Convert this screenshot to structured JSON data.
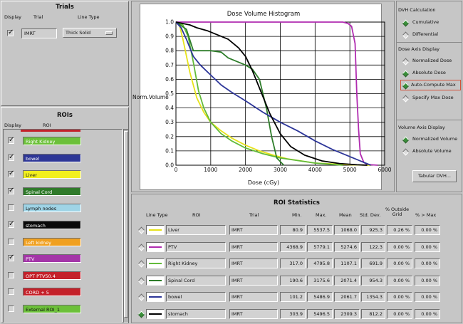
{
  "trials": {
    "title": "Trials",
    "headers": {
      "display": "Display",
      "trial": "Trial",
      "line_type": "Line Type"
    },
    "row": {
      "checked": true,
      "name": "IMRT",
      "line_type": "Thick Solid"
    }
  },
  "rois": {
    "title": "ROIs",
    "headers": {
      "display": "Display",
      "roi": "ROI"
    },
    "items": [
      {
        "name": "Right Kidney",
        "checked": true,
        "color": "#6cc03a",
        "text_color": "#ffffff"
      },
      {
        "name": "bowel",
        "checked": true,
        "color": "#2d3696",
        "text_color": "#ffffff"
      },
      {
        "name": "Liver",
        "checked": true,
        "color": "#f2ef1e",
        "text_color": "#111111"
      },
      {
        "name": "Spinal Cord",
        "checked": true,
        "color": "#2f7a2a",
        "text_color": "#ffffff"
      },
      {
        "name": "Lymph nodes",
        "checked": false,
        "color": "#9fd4e6",
        "text_color": "#111111"
      },
      {
        "name": "stomach",
        "checked": true,
        "color": "#0a0a0a",
        "text_color": "#ffffff"
      },
      {
        "name": "Left kidney",
        "checked": false,
        "color": "#f0a020",
        "text_color": "#ffffff"
      },
      {
        "name": "PTV",
        "checked": true,
        "color": "#a436a8",
        "text_color": "#ffffff"
      },
      {
        "name": "OPT PTV50.4",
        "checked": false,
        "color": "#c4212a",
        "text_color": "#ffffff"
      },
      {
        "name": "CORD + 5",
        "checked": false,
        "color": "#c4212a",
        "text_color": "#ffffff"
      },
      {
        "name": "External ROI_1",
        "checked": false,
        "color": "#6cc03a",
        "text_color": "#111111"
      }
    ]
  },
  "chart_data": {
    "type": "line",
    "title": "Dose Volume Histogram",
    "xlabel": "Dose (cGy)",
    "ylabel": "Norm.Volume",
    "xlim": [
      0,
      6000
    ],
    "ylim": [
      0,
      1.0
    ],
    "xticks": [
      0,
      1000,
      2000,
      3000,
      4000,
      5000,
      6000
    ],
    "yticks": [
      0.0,
      0.1,
      0.2,
      0.3,
      0.4,
      0.5,
      0.6,
      0.7,
      0.8,
      0.9,
      1.0
    ],
    "grid": true,
    "series": [
      {
        "name": "PTV",
        "color": "#b02cb0",
        "x": [
          0,
          4800,
          4950,
          5050,
          5150,
          5200,
          5250,
          5300,
          5400,
          5500,
          5800
        ],
        "y": [
          1.0,
          1.0,
          0.99,
          0.97,
          0.85,
          0.5,
          0.25,
          0.08,
          0.02,
          0.005,
          0.0
        ]
      },
      {
        "name": "Liver",
        "color": "#e6e21a",
        "x": [
          0,
          100,
          200,
          400,
          600,
          800,
          1000,
          1300,
          1600,
          2000,
          2400,
          2800,
          3200,
          4000,
          5000,
          5600
        ],
        "y": [
          1.0,
          0.98,
          0.88,
          0.65,
          0.47,
          0.37,
          0.3,
          0.24,
          0.19,
          0.14,
          0.1,
          0.07,
          0.045,
          0.015,
          0.003,
          0.0
        ]
      },
      {
        "name": "Right Kidney",
        "color": "#62bb3a",
        "x": [
          0,
          200,
          350,
          500,
          650,
          800,
          1000,
          1300,
          1600,
          2000,
          2500,
          3000,
          4000,
          4800
        ],
        "y": [
          1.0,
          0.98,
          0.9,
          0.72,
          0.52,
          0.4,
          0.3,
          0.22,
          0.17,
          0.12,
          0.08,
          0.05,
          0.015,
          0.0
        ]
      },
      {
        "name": "Spinal Cord",
        "color": "#2e7d2a",
        "x": [
          0,
          300,
          500,
          700,
          1000,
          1300,
          1500,
          1800,
          2000,
          2200,
          2400,
          2600,
          2750,
          2900,
          3100
        ],
        "y": [
          1.0,
          0.95,
          0.8,
          0.8,
          0.8,
          0.79,
          0.75,
          0.72,
          0.7,
          0.67,
          0.6,
          0.4,
          0.2,
          0.05,
          0.0
        ]
      },
      {
        "name": "bowel",
        "color": "#2c3598",
        "x": [
          0,
          150,
          300,
          500,
          700,
          1000,
          1300,
          1600,
          2000,
          2500,
          3000,
          3500,
          4000,
          4500,
          5000,
          5400,
          5600
        ],
        "y": [
          1.0,
          0.96,
          0.88,
          0.76,
          0.7,
          0.63,
          0.56,
          0.51,
          0.45,
          0.37,
          0.3,
          0.24,
          0.17,
          0.11,
          0.06,
          0.02,
          0.0
        ]
      },
      {
        "name": "stomach",
        "color": "#000000",
        "x": [
          0,
          400,
          600,
          900,
          1200,
          1500,
          1800,
          2000,
          2200,
          2400,
          2700,
          3000,
          3300,
          3700,
          4200,
          4700,
          5200,
          5500
        ],
        "y": [
          1.0,
          0.98,
          0.96,
          0.94,
          0.91,
          0.88,
          0.82,
          0.76,
          0.66,
          0.54,
          0.36,
          0.22,
          0.13,
          0.07,
          0.03,
          0.012,
          0.003,
          0.0
        ]
      }
    ]
  },
  "dvh_calc": {
    "title": "DVH Calculation",
    "options": [
      {
        "label": "Cumulative",
        "selected": true
      },
      {
        "label": "Differential",
        "selected": false
      }
    ]
  },
  "dose_axis": {
    "title": "Dose Axis Display",
    "options": [
      {
        "label": "Normalized Dose",
        "selected": false
      },
      {
        "label": "Absolute Dose",
        "selected": true
      },
      {
        "label": "Auto-Compute Max",
        "selected": true
      },
      {
        "label": "Specify Max Dose",
        "selected": false
      }
    ]
  },
  "volume_axis": {
    "title": "Volume Axis Display",
    "options": [
      {
        "label": "Normalized Volume",
        "selected": true
      },
      {
        "label": "Absolute Volume",
        "selected": false
      }
    ]
  },
  "tabular_button": "Tabular DVH...",
  "stats": {
    "title": "ROI Statistics",
    "headers": {
      "line_type": "Line Type",
      "roi": "ROI",
      "trial": "Trial",
      "min": "Min.",
      "max": "Max.",
      "mean": "Mean",
      "std": "Std. Dev.",
      "outside": "% Outside\nGrid",
      "gtmax": "% > Max"
    },
    "rows": [
      {
        "selected": false,
        "color": "#e6e21a",
        "roi": "Liver",
        "trial": "IMRT",
        "min": "80.9",
        "max": "5537.5",
        "mean": "1068.0",
        "std": "925.3",
        "outside": "0.26 %",
        "gtmax": "0.00 %"
      },
      {
        "selected": false,
        "color": "#b02cb0",
        "roi": "PTV",
        "trial": "IMRT",
        "min": "4368.9",
        "max": "5779.1",
        "mean": "5274.6",
        "std": "122.3",
        "outside": "0.00 %",
        "gtmax": "0.00 %"
      },
      {
        "selected": false,
        "color": "#62bb3a",
        "roi": "Right Kidney",
        "trial": "IMRT",
        "min": "317.0",
        "max": "4795.8",
        "mean": "1107.1",
        "std": "691.9",
        "outside": "0.00 %",
        "gtmax": "0.00 %"
      },
      {
        "selected": false,
        "color": "#2e7d2a",
        "roi": "Spinal Cord",
        "trial": "IMRT",
        "min": "190.6",
        "max": "3175.6",
        "mean": "2071.4",
        "std": "954.3",
        "outside": "0.00 %",
        "gtmax": "0.00 %"
      },
      {
        "selected": false,
        "color": "#2c3598",
        "roi": "bowel",
        "trial": "IMRT",
        "min": "101.2",
        "max": "5486.9",
        "mean": "2061.7",
        "std": "1354.3",
        "outside": "0.00 %",
        "gtmax": "0.00 %"
      },
      {
        "selected": true,
        "color": "#000000",
        "roi": "stomach",
        "trial": "IMRT",
        "min": "303.9",
        "max": "5496.5",
        "mean": "2309.3",
        "std": "812.2",
        "outside": "0.00 %",
        "gtmax": "0.00 %"
      }
    ]
  }
}
